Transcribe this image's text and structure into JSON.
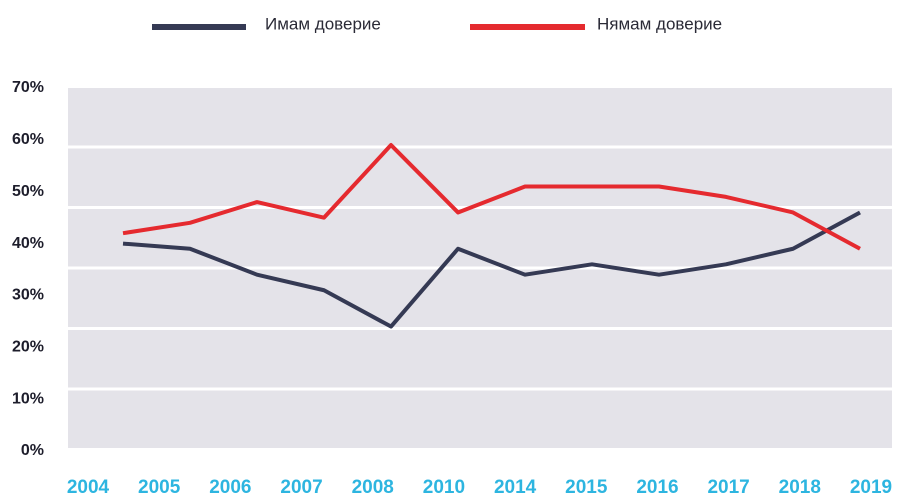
{
  "chart_data": {
    "type": "line",
    "categories": [
      "2004",
      "2005",
      "2006",
      "2007",
      "2008",
      "2010",
      "2014",
      "2015",
      "2016",
      "2017",
      "2018",
      "2019"
    ],
    "series": [
      {
        "name": "Имам доверие",
        "color": "#353a54",
        "values": [
          40,
          39,
          34,
          31,
          24,
          39,
          34,
          36,
          34,
          36,
          39,
          46
        ]
      },
      {
        "name": "Нямам доверие",
        "color": "#e52a2f",
        "values": [
          42,
          44,
          48,
          45,
          59,
          46,
          51,
          51,
          51,
          49,
          46,
          39
        ]
      }
    ],
    "ylim": [
      0,
      70
    ],
    "yticks": [
      {
        "value": 0,
        "label": "0%"
      },
      {
        "value": 10,
        "label": "10%"
      },
      {
        "value": 20,
        "label": "20%"
      },
      {
        "value": 30,
        "label": "30%"
      },
      {
        "value": 40,
        "label": "40%"
      },
      {
        "value": 50,
        "label": "50%"
      },
      {
        "value": 60,
        "label": "60%"
      },
      {
        "value": 70,
        "label": "70%"
      }
    ],
    "legend": "top"
  }
}
